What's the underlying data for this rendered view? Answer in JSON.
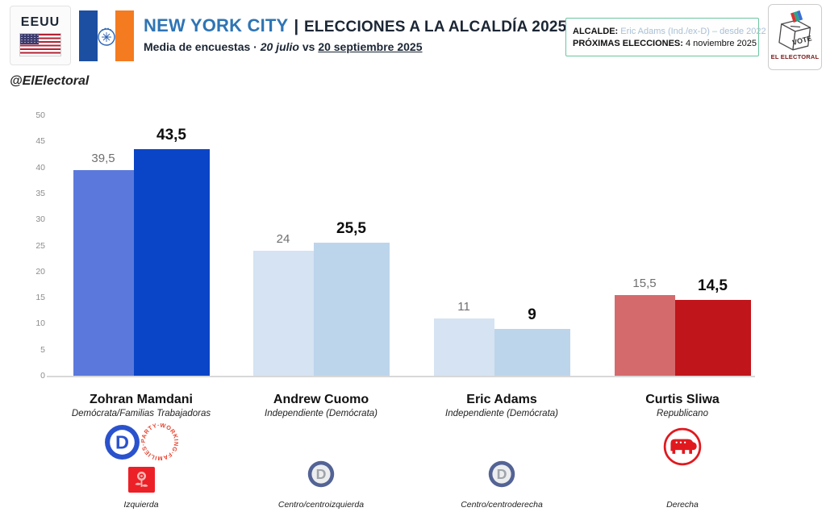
{
  "header": {
    "country_label": "EEUU",
    "title_city": "NEW YORK CITY",
    "title_sep": "|",
    "title_rest": "ELECCIONES A LA ALCALDÍA 2025",
    "subtitle_prefix": "Media de encuestas ·",
    "subtitle_date1": "20 julio",
    "subtitle_vs": "vs",
    "subtitle_date2": "20 septiembre 2025",
    "info_box": {
      "mayor_label": "ALCALDE:",
      "mayor_value": "Eric Adams (Ind./ex-D) – desde 2022",
      "next_label": "PRÓXIMAS ELECCIONES:",
      "next_value": "4 noviembre 2025"
    },
    "brand": {
      "vote_text": "VOTE",
      "name": "EL ELECTORAL"
    }
  },
  "watermark": "@ElElectoral",
  "chart_data": {
    "type": "bar",
    "title": "NEW YORK CITY | Elecciones a la Alcaldía 2025 — Media de encuestas",
    "subtitle": "20 julio vs 20 septiembre 2025",
    "categories": [
      "Zohran Mamdani",
      "Andrew Cuomo",
      "Eric Adams",
      "Curtis Sliwa"
    ],
    "series": [
      {
        "name": "20 julio",
        "values": [
          39.5,
          24,
          11,
          15.5
        ],
        "labels": [
          "39,5",
          "24",
          "11",
          "15,5"
        ]
      },
      {
        "name": "20 septiembre 2025",
        "values": [
          43.5,
          25.5,
          9,
          14.5
        ],
        "labels": [
          "43,5",
          "25,5",
          "9",
          "14,5"
        ]
      }
    ],
    "bar_colors": [
      {
        "july": "#5b79dc",
        "sept": "#0b45c7"
      },
      {
        "july": "#d5e3f2",
        "sept": "#bcd5eb"
      },
      {
        "july": "#d5e3f2",
        "sept": "#bcd5eb"
      },
      {
        "july": "#d46a6c",
        "sept": "#c0151b"
      }
    ],
    "ylim": [
      0,
      50
    ],
    "yticks": [
      0,
      5,
      10,
      15,
      20,
      25,
      30,
      35,
      40,
      45,
      50
    ],
    "grid": false,
    "legend_position": "none"
  },
  "candidates": [
    {
      "name": "Zohran Mamdani",
      "party": "Demócrata/Familias Trabajadoras",
      "ideology": "Izquierda",
      "logos": [
        "democratic-party-d",
        "working-families-party",
        "dsa-rose"
      ]
    },
    {
      "name": "Andrew Cuomo",
      "party": "Independiente (Demócrata)",
      "ideology": "Centro/centroizquierda",
      "logos": [
        "democratic-party-d"
      ]
    },
    {
      "name": "Eric Adams",
      "party": "Independiente (Demócrata)",
      "ideology": "Centro/centroderecha",
      "logos": [
        "democratic-party-d"
      ]
    },
    {
      "name": "Curtis Sliwa",
      "party": "Republicano",
      "ideology": "Derecha",
      "logos": [
        "republican-party-elephant"
      ]
    }
  ],
  "colors": {
    "accent_blue": "#2e74b5",
    "dark_navy": "#1b2634",
    "mamdani_july": "#5b79dc",
    "mamdani_sept": "#0b45c7",
    "dem_light_july": "#d5e3f2",
    "dem_light_sept": "#bcd5eb",
    "gop_july": "#d46a6c",
    "gop_sept": "#c0151b",
    "info_border_green": "#6cc5a1",
    "brand_maroon": "#7a1a1a",
    "wfp_red": "#e8432e",
    "dsa_red": "#ec2027",
    "gop_logo_red": "#e0191f",
    "dem_logo_blue": "#2a52cd"
  },
  "wfp_circle_text": "WORKING·FAMILIES·PARTY·"
}
